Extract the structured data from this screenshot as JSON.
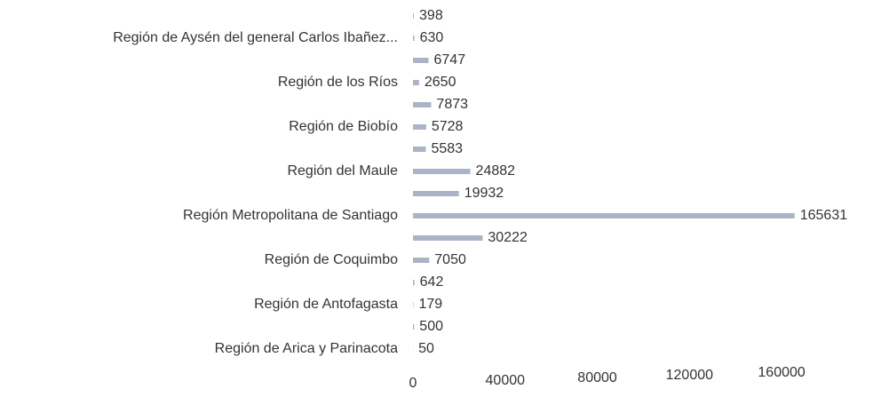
{
  "chart_data": {
    "type": "barh",
    "categories": [
      null,
      "Región de Aysén del general Carlos Ibañez...",
      null,
      "Región de los Ríos",
      null,
      "Región de Biobío",
      null,
      "Región del Maule",
      null,
      "Región Metropolitana de Santiago",
      null,
      "Región de Coquimbo",
      null,
      "Región de Antofagasta",
      null,
      "Región de Arica y Parinacota"
    ],
    "values": [
      398,
      630,
      6747,
      2650,
      7873,
      5728,
      5583,
      24882,
      19932,
      165631,
      30222,
      7050,
      642,
      179,
      500,
      50
    ],
    "color": "#a9b4c6",
    "xlim": [
      0,
      180000
    ],
    "xticks": [
      0,
      40000,
      80000,
      120000,
      160000
    ],
    "grid": false
  }
}
